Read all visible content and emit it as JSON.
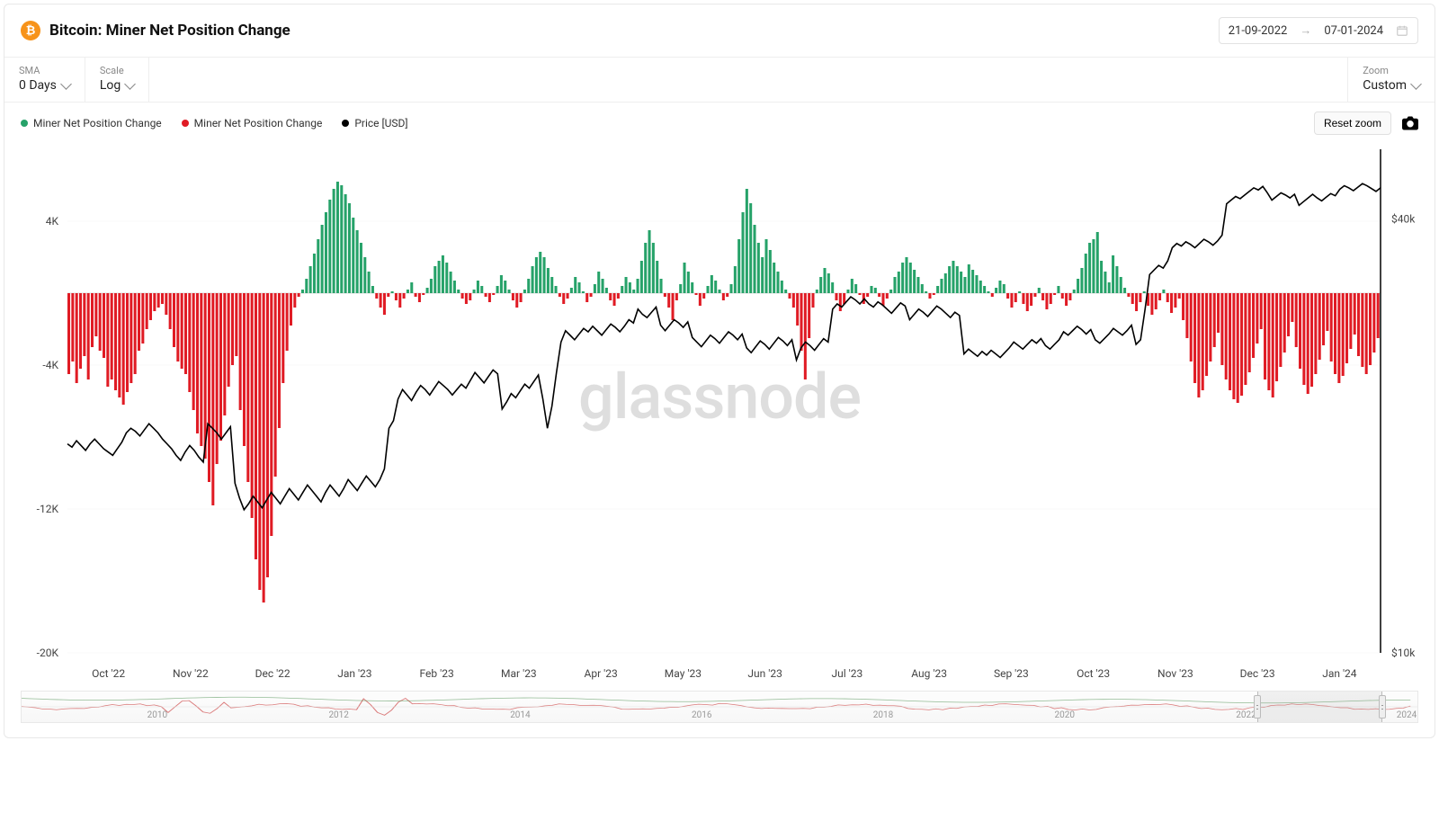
{
  "header": {
    "title": "Bitcoin: Miner Net Position Change",
    "date_from": "21-09-2022",
    "date_to": "07-01-2024"
  },
  "controls": {
    "sma_label": "SMA",
    "sma_value": "0 Days",
    "scale_label": "Scale",
    "scale_value": "Log",
    "zoom_label": "Zoom",
    "zoom_value": "Custom"
  },
  "legend": {
    "positive": "Miner Net Position Change",
    "negative": "Miner Net Position Change",
    "price": "Price [USD]"
  },
  "tools": {
    "reset": "Reset zoom"
  },
  "watermark": "glassnode",
  "chart": {
    "type": "bar+line",
    "colors": {
      "positive": "#26a269",
      "negative": "#e01b24",
      "price": "#000000",
      "grid": "#f0f0f0",
      "axis": "#cccccc",
      "bg": "#ffffff"
    },
    "left_axis": {
      "min": -20000,
      "max": 8000,
      "ticks": [
        -20000,
        -12000,
        -4000,
        4000
      ],
      "tick_labels": [
        "-20K",
        "-12K",
        "-4K",
        "4K"
      ]
    },
    "right_axis": {
      "scale": "log",
      "min": 10000,
      "max": 50000,
      "ticks": [
        10000,
        40000
      ],
      "tick_labels": [
        "$10k",
        "$40k"
      ]
    },
    "x_labels": [
      "Oct '22",
      "Nov '22",
      "Dec '22",
      "Jan '23",
      "Feb '23",
      "Mar '23",
      "Apr '23",
      "May '23",
      "Jun '23",
      "Jul '23",
      "Aug '23",
      "Sep '23",
      "Oct '23",
      "Nov '23",
      "Dec '23",
      "Jan '24"
    ],
    "bars": [
      -4500,
      -3800,
      -5000,
      -4200,
      -3500,
      -4800,
      -3000,
      -2400,
      -3200,
      -3600,
      -5200,
      -4800,
      -5400,
      -5800,
      -6200,
      -5500,
      -5000,
      -4500,
      -3200,
      -2800,
      -2000,
      -1500,
      -1000,
      -800,
      -600,
      -1200,
      -2000,
      -3000,
      -3800,
      -4200,
      -4500,
      -5500,
      -6500,
      -7800,
      -8500,
      -9200,
      -10500,
      -11800,
      -9500,
      -8200,
      -6800,
      -5200,
      -4000,
      -3500,
      -6500,
      -8500,
      -10500,
      -12500,
      -14800,
      -16500,
      -17200,
      -15800,
      -13500,
      -10200,
      -7500,
      -5000,
      -3200,
      -1800,
      -800,
      -200,
      200,
      800,
      1500,
      2200,
      3000,
      3800,
      4500,
      5200,
      5800,
      6200,
      6000,
      5500,
      5000,
      4200,
      3500,
      2800,
      2000,
      1200,
      400,
      -300,
      -800,
      -1200,
      -200,
      100,
      -400,
      -800,
      -300,
      200,
      600,
      -200,
      -500,
      -100,
      300,
      800,
      1500,
      1800,
      2100,
      1700,
      1200,
      700,
      200,
      -300,
      -600,
      -400,
      200,
      700,
      400,
      -200,
      -500,
      -100,
      400,
      1000,
      700,
      200,
      -400,
      -800,
      -500,
      200,
      800,
      1500,
      2000,
      2300,
      2000,
      1400,
      900,
      400,
      -200,
      -600,
      -300,
      300,
      900,
      600,
      100,
      -500,
      -200,
      500,
      1200,
      800,
      300,
      -400,
      -700,
      -300,
      400,
      900,
      600,
      200,
      800,
      1800,
      2800,
      3500,
      2800,
      1800,
      800,
      -200,
      -800,
      -1500,
      -400,
      500,
      1700,
      1200,
      600,
      -100,
      -700,
      -300,
      400,
      1000,
      700,
      200,
      -400,
      -200,
      500,
      1500,
      3000,
      4500,
      5800,
      5000,
      3800,
      2800,
      2000,
      3000,
      2400,
      1700,
      1200,
      700,
      200,
      -300,
      -800,
      -1800,
      -3200,
      -4800,
      -2500,
      -800,
      200,
      900,
      1400,
      1100,
      600,
      -400,
      -1000,
      -600,
      200,
      800,
      500,
      -100,
      -600,
      -200,
      400,
      300,
      -200,
      -700,
      -300,
      200,
      900,
      1200,
      1700,
      2000,
      1700,
      1300,
      900,
      500,
      100,
      -300,
      -100,
      400,
      800,
      1100,
      1500,
      1800,
      1500,
      1200,
      900,
      1600,
      1300,
      1000,
      700,
      400,
      100,
      -200,
      300,
      700,
      500,
      -300,
      -800,
      -500,
      100,
      -600,
      -1000,
      -700,
      -200,
      300,
      -400,
      -900,
      -600,
      -100,
      400,
      -300,
      -700,
      -400,
      200,
      800,
      1400,
      2200,
      2800,
      3000,
      3400,
      1800,
      1200,
      600,
      2100,
      1500,
      900,
      300,
      -200,
      -600,
      -1000,
      -500,
      100,
      -700,
      -1200,
      -900,
      -400,
      200,
      -500,
      -1100,
      -800,
      -300,
      -1500,
      -2500,
      -3800,
      -5000,
      -5800,
      -5400,
      -4600,
      -3800,
      -3000,
      -2200,
      -4000,
      -4800,
      -5400,
      -5900,
      -6100,
      -5700,
      -5100,
      -4400,
      -3600,
      -2800,
      -2000,
      -4800,
      -5400,
      -5800,
      -4900,
      -4100,
      -3300,
      -2400,
      -1600,
      -3000,
      -4200,
      -5100,
      -5600,
      -5200,
      -4500,
      -3700,
      -2900,
      -2100,
      -3800,
      -4500,
      -5000,
      -4600,
      -3900,
      -3100,
      -2300,
      -3500,
      -4100,
      -4500,
      -4000,
      -3300,
      -2500
    ],
    "price": [
      19500,
      19300,
      19700,
      19400,
      19100,
      19500,
      19800,
      19500,
      19200,
      19000,
      18800,
      19200,
      19600,
      20200,
      20500,
      20300,
      20000,
      20400,
      20800,
      20500,
      20200,
      19800,
      19500,
      19200,
      18800,
      18500,
      19000,
      19400,
      19100,
      18700,
      18400,
      20800,
      20500,
      20200,
      19800,
      20200,
      20600,
      17200,
      16400,
      15800,
      16100,
      16500,
      16200,
      15900,
      16300,
      16700,
      16400,
      16100,
      16500,
      16900,
      16600,
      16300,
      16700,
      17100,
      16800,
      16500,
      16200,
      16700,
      17100,
      16800,
      16500,
      16900,
      17400,
      17100,
      16800,
      17200,
      17600,
      17300,
      17000,
      17400,
      18000,
      20500,
      21000,
      22500,
      23200,
      22800,
      22400,
      23000,
      23500,
      23200,
      22800,
      23300,
      23800,
      23500,
      23200,
      22800,
      23200,
      23600,
      23300,
      23900,
      24500,
      24100,
      23700,
      24200,
      24700,
      24400,
      21800,
      22300,
      22900,
      22600,
      23100,
      23600,
      23300,
      23800,
      24300,
      22500,
      20500,
      22000,
      24500,
      27000,
      28000,
      27600,
      27200,
      27700,
      28200,
      27900,
      28400,
      28000,
      27600,
      28100,
      28600,
      28300,
      27900,
      28400,
      29000,
      28700,
      30000,
      29500,
      29200,
      29700,
      30200,
      28500,
      28000,
      28500,
      29000,
      28700,
      28300,
      28800,
      27400,
      27000,
      26600,
      27100,
      27600,
      27300,
      26900,
      27400,
      27900,
      27600,
      27200,
      27700,
      26500,
      26100,
      26600,
      27100,
      26800,
      26400,
      26900,
      27400,
      27100,
      26700,
      27200,
      25500,
      26500,
      27000,
      26700,
      26300,
      26800,
      27300,
      27000,
      30000,
      30500,
      30200,
      30700,
      31200,
      30900,
      30500,
      31000,
      30500,
      30200,
      30700,
      30400,
      30000,
      29600,
      30100,
      30600,
      30300,
      29000,
      29500,
      30000,
      29700,
      29300,
      29800,
      30300,
      30000,
      29600,
      29200,
      29700,
      29400,
      26000,
      26400,
      26100,
      25800,
      26200,
      25900,
      26300,
      26000,
      25700,
      26100,
      26500,
      27000,
      26700,
      26400,
      26800,
      27200,
      26900,
      27300,
      26700,
      26400,
      26800,
      27200,
      27900,
      27600,
      28000,
      28400,
      28100,
      27700,
      28100,
      27200,
      26900,
      27300,
      27700,
      28200,
      27900,
      27600,
      28000,
      28500,
      26800,
      27200,
      30000,
      33500,
      34000,
      34500,
      34200,
      35000,
      36500,
      37000,
      36700,
      37200,
      36900,
      36500,
      37000,
      37500,
      37200,
      36800,
      37300,
      38000,
      42000,
      42500,
      43000,
      42700,
      43200,
      43700,
      44200,
      43900,
      44400,
      43500,
      42500,
      43000,
      43500,
      43200,
      42800,
      43300,
      41800,
      42300,
      42800,
      43300,
      42800,
      42400,
      42900,
      43400,
      43100,
      44000,
      44500,
      44200,
      43800,
      44300,
      44800,
      44500,
      44100,
      43700,
      44200
    ]
  },
  "brush": {
    "labels": [
      {
        "text": "2010",
        "left_pct": 9
      },
      {
        "text": "2012",
        "left_pct": 22
      },
      {
        "text": "2014",
        "left_pct": 35
      },
      {
        "text": "2016",
        "left_pct": 48
      },
      {
        "text": "2018",
        "left_pct": 61
      },
      {
        "text": "2020",
        "left_pct": 74
      },
      {
        "text": "2022",
        "left_pct": 87
      },
      {
        "text": "2024",
        "left_pct": 98.5
      }
    ],
    "sel_left_pct": 88.5,
    "sel_right_pct": 97.5
  }
}
